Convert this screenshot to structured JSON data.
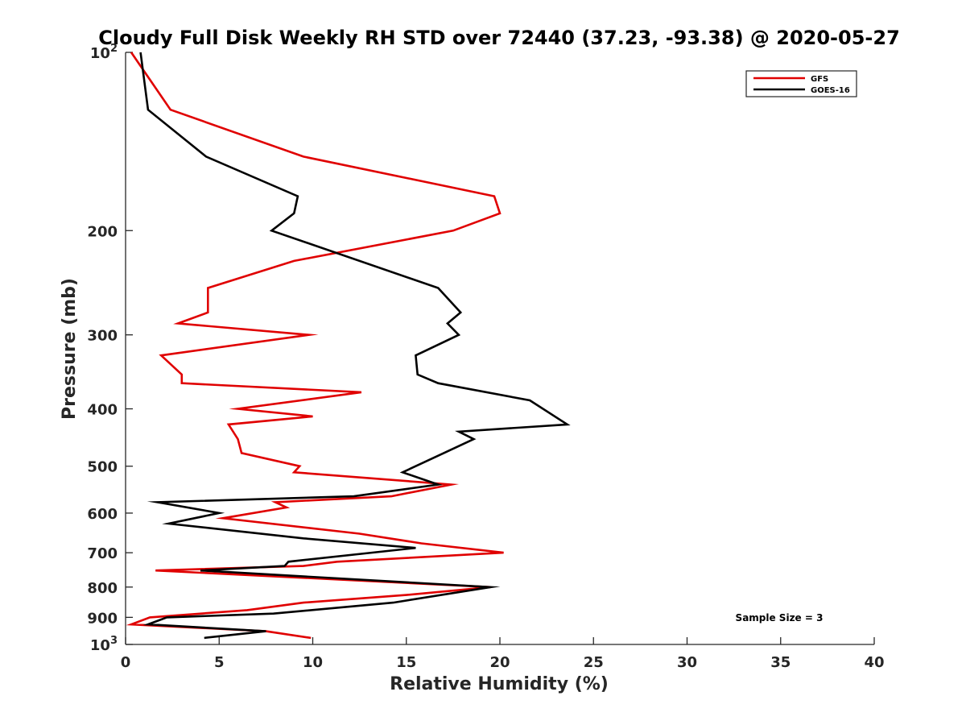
{
  "chart_data": {
    "type": "line",
    "title": "Cloudy Full Disk Weekly RH STD over 72440 (37.23, -93.38) @ 2020-05-27",
    "xlabel": "Relative Humidity (%)",
    "ylabel": "Pressure (mb)",
    "xlim": [
      0,
      40
    ],
    "ylim": [
      100,
      1000
    ],
    "y_scale": "log",
    "y_reversed": true,
    "x_ticks": [
      "0",
      "5",
      "10",
      "15",
      "20",
      "25",
      "30",
      "35",
      "40"
    ],
    "y_ticks": [
      {
        "value": 100,
        "base": "10",
        "exp": "2"
      },
      {
        "value": 200,
        "label": "200"
      },
      {
        "value": 300,
        "label": "300"
      },
      {
        "value": 400,
        "label": "400"
      },
      {
        "value": 500,
        "label": "500"
      },
      {
        "value": 600,
        "label": "600"
      },
      {
        "value": 700,
        "label": "700"
      },
      {
        "value": 800,
        "label": "800"
      },
      {
        "value": 900,
        "label": "900"
      },
      {
        "value": 1000,
        "base": "10",
        "exp": "3"
      }
    ],
    "grid": false,
    "legend_position": "top-right",
    "annotation": "Sample Size = 3",
    "series": [
      {
        "name": "GFS",
        "color": "#e00000",
        "points": [
          {
            "x": 0.3,
            "p": 100
          },
          {
            "x": 2.4,
            "p": 125
          },
          {
            "x": 9.5,
            "p": 150
          },
          {
            "x": 19.7,
            "p": 175
          },
          {
            "x": 20.0,
            "p": 187
          },
          {
            "x": 17.5,
            "p": 200
          },
          {
            "x": 9.0,
            "p": 225
          },
          {
            "x": 4.4,
            "p": 250
          },
          {
            "x": 4.4,
            "p": 275
          },
          {
            "x": 2.8,
            "p": 287
          },
          {
            "x": 9.8,
            "p": 300
          },
          {
            "x": 1.9,
            "p": 325
          },
          {
            "x": 3.0,
            "p": 350
          },
          {
            "x": 3.0,
            "p": 362
          },
          {
            "x": 12.6,
            "p": 375
          },
          {
            "x": 6.0,
            "p": 400
          },
          {
            "x": 10.0,
            "p": 412
          },
          {
            "x": 5.5,
            "p": 425
          },
          {
            "x": 6.0,
            "p": 450
          },
          {
            "x": 6.2,
            "p": 475
          },
          {
            "x": 9.3,
            "p": 500
          },
          {
            "x": 9.0,
            "p": 512
          },
          {
            "x": 17.4,
            "p": 537
          },
          {
            "x": 14.2,
            "p": 562
          },
          {
            "x": 8.0,
            "p": 575
          },
          {
            "x": 8.6,
            "p": 587
          },
          {
            "x": 5.2,
            "p": 612
          },
          {
            "x": 12.5,
            "p": 650
          },
          {
            "x": 15.8,
            "p": 675
          },
          {
            "x": 20.2,
            "p": 700
          },
          {
            "x": 11.3,
            "p": 725
          },
          {
            "x": 9.5,
            "p": 737
          },
          {
            "x": 1.6,
            "p": 750
          },
          {
            "x": 19.5,
            "p": 800
          },
          {
            "x": 15.0,
            "p": 825
          },
          {
            "x": 9.5,
            "p": 850
          },
          {
            "x": 6.5,
            "p": 875
          },
          {
            "x": 1.3,
            "p": 900
          },
          {
            "x": 0.3,
            "p": 925
          },
          {
            "x": 7.5,
            "p": 950
          },
          {
            "x": 9.9,
            "p": 975
          }
        ]
      },
      {
        "name": "GOES-16",
        "color": "#000000",
        "points": [
          {
            "x": 0.8,
            "p": 100
          },
          {
            "x": 1.2,
            "p": 125
          },
          {
            "x": 4.3,
            "p": 150
          },
          {
            "x": 9.2,
            "p": 175
          },
          {
            "x": 9.0,
            "p": 187
          },
          {
            "x": 7.8,
            "p": 200
          },
          {
            "x": 16.7,
            "p": 250
          },
          {
            "x": 17.9,
            "p": 275
          },
          {
            "x": 17.2,
            "p": 287
          },
          {
            "x": 17.8,
            "p": 300
          },
          {
            "x": 15.5,
            "p": 325
          },
          {
            "x": 15.6,
            "p": 350
          },
          {
            "x": 16.7,
            "p": 362
          },
          {
            "x": 21.6,
            "p": 387
          },
          {
            "x": 23.6,
            "p": 425
          },
          {
            "x": 17.8,
            "p": 437
          },
          {
            "x": 18.6,
            "p": 450
          },
          {
            "x": 17.0,
            "p": 475
          },
          {
            "x": 14.8,
            "p": 512
          },
          {
            "x": 16.7,
            "p": 537
          },
          {
            "x": 12.2,
            "p": 562
          },
          {
            "x": 1.7,
            "p": 575
          },
          {
            "x": 5.0,
            "p": 600
          },
          {
            "x": 2.3,
            "p": 625
          },
          {
            "x": 9.5,
            "p": 662
          },
          {
            "x": 15.5,
            "p": 687
          },
          {
            "x": 8.7,
            "p": 725
          },
          {
            "x": 8.5,
            "p": 737
          },
          {
            "x": 4.0,
            "p": 750
          },
          {
            "x": 19.5,
            "p": 800
          },
          {
            "x": 14.3,
            "p": 850
          },
          {
            "x": 7.9,
            "p": 887
          },
          {
            "x": 2.2,
            "p": 900
          },
          {
            "x": 1.2,
            "p": 925
          },
          {
            "x": 7.5,
            "p": 950
          },
          {
            "x": 4.2,
            "p": 975
          }
        ]
      }
    ]
  }
}
